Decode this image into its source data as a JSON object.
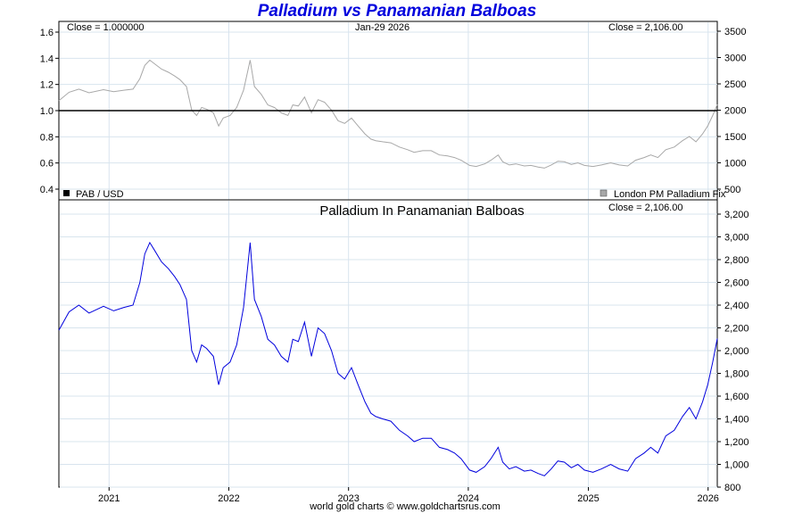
{
  "title": "Palladium vs Panamanian Balboas",
  "footer": "world gold charts © www.goldchartsrus.com",
  "colors": {
    "title": "#0000dd",
    "pab": "#000000",
    "fix": "#a8a8a8",
    "main": "#0000dd",
    "grid": "#d8e4ee"
  },
  "chart_data": [
    {
      "type": "line",
      "panel": "top",
      "annotations": {
        "left": "Close = 1.000000",
        "center": "Jan-29  2026",
        "right": "Close = 2,106.00"
      },
      "legend": [
        {
          "label": "PAB / USD",
          "color": "#000000"
        },
        {
          "label": "London PM Palladium Fix",
          "color": "#a8a8a8"
        }
      ],
      "left_axis": {
        "ticks": [
          "1.6",
          "1.4",
          "1.2",
          "1.0",
          "0.8",
          "0.6",
          "0.4"
        ],
        "range": [
          0.4,
          1.6
        ]
      },
      "right_axis": {
        "ticks": [
          "3500",
          "3000",
          "2500",
          "2000",
          "1500",
          "1000",
          "500"
        ],
        "range": [
          500,
          3500
        ]
      },
      "series": [
        {
          "name": "PAB / USD",
          "axis": "left",
          "constant": 1.0
        },
        {
          "name": "London PM Palladium Fix",
          "axis": "right",
          "ref": "palladium"
        }
      ]
    },
    {
      "type": "line",
      "panel": "bottom",
      "title": "Palladium In Panamanian Balboas",
      "annotation": "Close = 2,106.00",
      "y_axis": {
        "ticks": [
          "3,200",
          "3,000",
          "2,800",
          "2,600",
          "2,400",
          "2,200",
          "2,000",
          "1,800",
          "1,600",
          "1,400",
          "1,200",
          "1,000",
          "800"
        ],
        "range": [
          800,
          3200
        ]
      },
      "x_axis": {
        "ticks": [
          "2021",
          "2022",
          "2023",
          "2024",
          "2025",
          "2026"
        ]
      },
      "palladium": {
        "x": [
          "2020-08-01",
          "2020-09-01",
          "2020-10-01",
          "2020-11-01",
          "2020-12-15",
          "2021-01-15",
          "2021-02-15",
          "2021-03-15",
          "2021-04-05",
          "2021-04-20",
          "2021-05-05",
          "2021-05-20",
          "2021-06-10",
          "2021-07-01",
          "2021-07-20",
          "2021-08-05",
          "2021-08-25",
          "2021-09-10",
          "2021-09-25",
          "2021-10-10",
          "2021-10-25",
          "2021-11-15",
          "2021-12-01",
          "2021-12-15",
          "2022-01-05",
          "2022-01-25",
          "2022-02-15",
          "2022-03-07",
          "2022-03-20",
          "2022-04-10",
          "2022-04-30",
          "2022-05-20",
          "2022-06-10",
          "2022-06-30",
          "2022-07-15",
          "2022-08-01",
          "2022-08-20",
          "2022-09-10",
          "2022-09-30",
          "2022-10-20",
          "2022-11-10",
          "2022-11-30",
          "2022-12-20",
          "2023-01-10",
          "2023-01-30",
          "2023-02-20",
          "2023-03-10",
          "2023-03-25",
          "2023-04-15",
          "2023-05-10",
          "2023-06-05",
          "2023-06-30",
          "2023-07-20",
          "2023-08-15",
          "2023-09-10",
          "2023-10-05",
          "2023-10-30",
          "2023-11-20",
          "2023-12-10",
          "2024-01-05",
          "2024-01-25",
          "2024-02-20",
          "2024-03-10",
          "2024-04-01",
          "2024-04-15",
          "2024-05-05",
          "2024-05-25",
          "2024-06-20",
          "2024-07-10",
          "2024-08-01",
          "2024-08-20",
          "2024-09-10",
          "2024-09-30",
          "2024-10-20",
          "2024-11-10",
          "2024-11-30",
          "2024-12-20",
          "2025-01-15",
          "2025-02-10",
          "2025-03-10",
          "2025-04-05",
          "2025-05-01",
          "2025-05-25",
          "2025-06-20",
          "2025-07-10",
          "2025-08-01",
          "2025-08-25",
          "2025-09-20",
          "2025-10-15",
          "2025-11-05",
          "2025-11-25",
          "2025-12-15",
          "2025-12-31",
          "2026-01-15",
          "2026-01-29"
        ],
        "y": [
          2180,
          2340,
          2400,
          2330,
          2390,
          2350,
          2380,
          2400,
          2600,
          2850,
          2950,
          2880,
          2780,
          2720,
          2650,
          2580,
          2450,
          2000,
          1900,
          2050,
          2020,
          1950,
          1700,
          1850,
          1900,
          2050,
          2380,
          2950,
          2450,
          2300,
          2100,
          2050,
          1950,
          1900,
          2100,
          2080,
          2250,
          1950,
          2200,
          2150,
          2000,
          1800,
          1750,
          1850,
          1700,
          1550,
          1450,
          1420,
          1400,
          1380,
          1300,
          1250,
          1200,
          1230,
          1230,
          1150,
          1130,
          1100,
          1050,
          950,
          930,
          980,
          1050,
          1150,
          1020,
          960,
          980,
          940,
          950,
          920,
          900,
          960,
          1030,
          1020,
          970,
          1000,
          950,
          930,
          960,
          1000,
          960,
          940,
          1050,
          1100,
          1150,
          1100,
          1250,
          1300,
          1420,
          1500,
          1400,
          1550,
          1700,
          1900,
          2106
        ]
      }
    }
  ]
}
